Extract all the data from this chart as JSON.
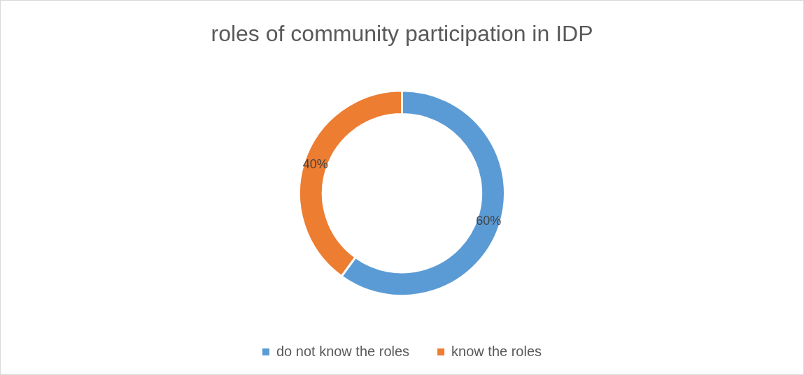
{
  "chart_data": {
    "type": "donut",
    "title": "roles of community participation in IDP",
    "categories": [
      "do not know the roles",
      "know the roles"
    ],
    "values": [
      60,
      40
    ],
    "colors": [
      "#5b9bd5",
      "#ed7d31"
    ],
    "value_labels": [
      "60%",
      "40%"
    ],
    "legend": "bottom"
  }
}
